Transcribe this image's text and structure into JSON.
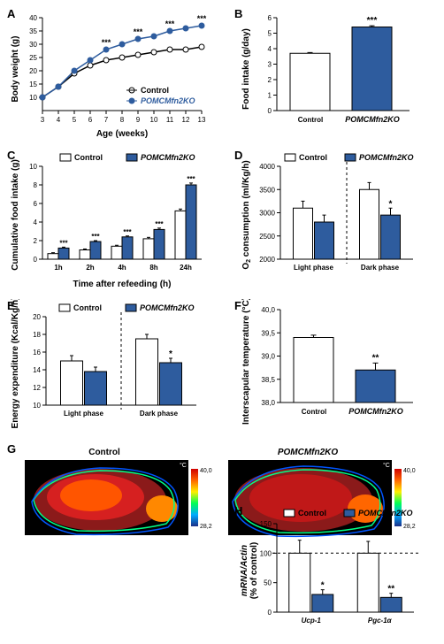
{
  "colors": {
    "control_fill": "#ffffff",
    "pomc_fill": "#2e5c9e",
    "stroke": "#000000",
    "axis": "#000000",
    "thermal_min": "#1c2f88",
    "thermal_max": "#fef200"
  },
  "labels": {
    "control": "Control",
    "pomc": "POMCMfn2KO",
    "ucp1": "Ucp-1",
    "pgc1a": "Pgc-1α"
  },
  "panelA": {
    "label": "A",
    "ylabel": "Body weight (g)",
    "xlabel": "Age (weeks)",
    "x": [
      3,
      4,
      5,
      6,
      7,
      8,
      9,
      10,
      11,
      12,
      13
    ],
    "control": [
      10,
      14,
      19,
      22,
      24,
      25,
      26,
      27,
      28,
      28,
      29
    ],
    "pomc": [
      10,
      14,
      20,
      24,
      28,
      30,
      32,
      33,
      35,
      36,
      37
    ],
    "sig_x": [
      7,
      9,
      11,
      13
    ],
    "sig_mark": "***",
    "ylim": [
      5,
      40
    ],
    "ytick": [
      10,
      15,
      20,
      25,
      30,
      35,
      40
    ],
    "xlim": [
      3,
      13
    ]
  },
  "panelB": {
    "label": "B",
    "ylabel": "Food intake (g/day)",
    "control": 3.7,
    "control_err": 0.05,
    "pomc": 5.4,
    "pomc_err": 0.08,
    "sig": "***",
    "ylim": [
      0,
      6
    ],
    "ytick": [
      0,
      1,
      2,
      3,
      4,
      5,
      6
    ]
  },
  "panelC": {
    "label": "C",
    "ylabel": "Cumulative food intake (g)",
    "xlabel": "Time after refeeding (h)",
    "categories": [
      "1h",
      "2h",
      "4h",
      "8h",
      "24h"
    ],
    "control": [
      0.6,
      1.0,
      1.4,
      2.2,
      5.2
    ],
    "pomc": [
      1.2,
      1.9,
      2.4,
      3.2,
      8.0
    ],
    "err": [
      0.1,
      0.1,
      0.1,
      0.15,
      0.2
    ],
    "sig": [
      "***",
      "***",
      "***",
      "***",
      "***"
    ],
    "ylim": [
      0,
      10
    ],
    "ytick": [
      0,
      2,
      4,
      6,
      8,
      10
    ]
  },
  "panelD": {
    "label": "D",
    "ylabel": "O₂ consumption (ml/Kg/h)",
    "categories": [
      "Light phase",
      "Dark phase"
    ],
    "control": [
      3100,
      3500
    ],
    "control_err": [
      150,
      150
    ],
    "pomc": [
      2800,
      2950
    ],
    "pomc_err": [
      150,
      150
    ],
    "sig": [
      "",
      "*"
    ],
    "ylim": [
      2000,
      4000
    ],
    "ytick": [
      2000,
      2500,
      3000,
      3500,
      4000
    ]
  },
  "panelE": {
    "label": "E",
    "ylabel": "Energy expenditure (Kcal/Kg/h)",
    "categories": [
      "Light phase",
      "Dark phase"
    ],
    "control": [
      15.0,
      17.5
    ],
    "control_err": [
      0.6,
      0.5
    ],
    "pomc": [
      13.8,
      14.8
    ],
    "pomc_err": [
      0.5,
      0.5
    ],
    "sig": [
      "",
      "*"
    ],
    "ylim": [
      10,
      20
    ],
    "ytick": [
      10,
      12,
      14,
      16,
      18,
      20
    ]
  },
  "panelF": {
    "label": "F",
    "ylabel": "Interscapular temperature (°C)",
    "control": 39.4,
    "control_err": 0.05,
    "pomc": 38.7,
    "pomc_err": 0.15,
    "sig": "**",
    "ylim": [
      38.0,
      40.0
    ],
    "ytick": [
      "38,0",
      "38,5",
      "39,0",
      "39,5",
      "40,0"
    ]
  },
  "panelG": {
    "label": "G",
    "titles": [
      "Control",
      "POMCMfn2KO"
    ],
    "scale_min": "28,2",
    "scale_max": "40,0",
    "unit": "°C"
  },
  "panelH": {
    "label": "H",
    "ylabel": "mRNA/Actin\n(% of control)",
    "categories": [
      "Ucp-1",
      "Pgc-1α"
    ],
    "control": [
      100,
      100
    ],
    "control_err": [
      22,
      20
    ],
    "pomc": [
      30,
      25
    ],
    "pomc_err": [
      8,
      7
    ],
    "sig": [
      "*",
      "**"
    ],
    "ylim": [
      0,
      150
    ],
    "ytick": [
      0,
      50,
      100,
      150
    ]
  }
}
